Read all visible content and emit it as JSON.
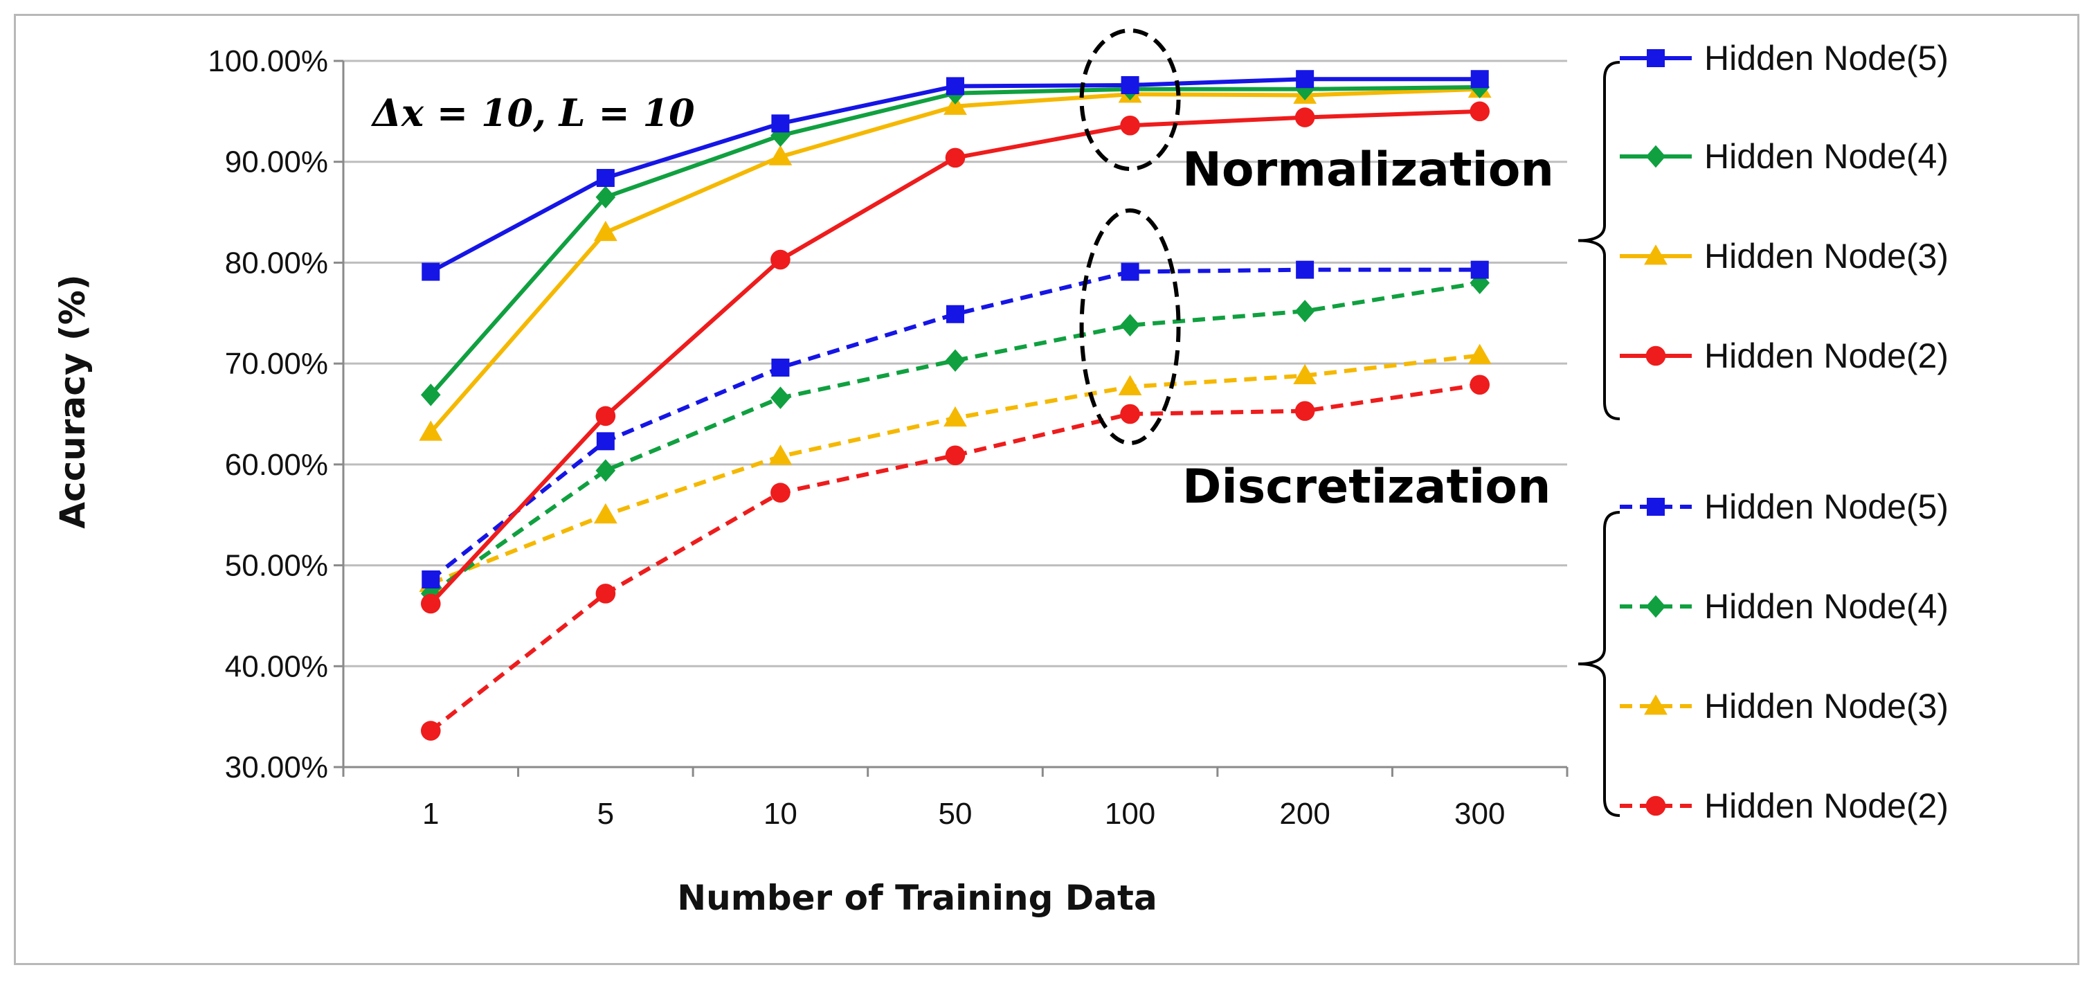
{
  "chart_data": {
    "type": "line",
    "title": "",
    "xlabel": "Number of Training Data",
    "ylabel": "Accuracy (%)",
    "categories": [
      "1",
      "5",
      "10",
      "50",
      "100",
      "200",
      "300"
    ],
    "ylim": [
      0.3,
      1.0
    ],
    "yticks": [
      "30.00%",
      "40.00%",
      "50.00%",
      "60.00%",
      "70.00%",
      "80.00%",
      "90.00%",
      "100.00%"
    ],
    "annotation": "Δx = 10, L = 10",
    "groups": [
      "Normalization",
      "Discretization"
    ],
    "series": [
      {
        "name": "Hidden Node(5)",
        "group": "Normalization",
        "color": "#1515e6",
        "marker": "square",
        "dashed": false,
        "values": [
          0.791,
          0.884,
          0.938,
          0.975,
          0.976,
          0.982,
          0.982
        ]
      },
      {
        "name": "Hidden Node(4)",
        "group": "Normalization",
        "color": "#10a040",
        "marker": "diamond",
        "dashed": false,
        "values": [
          0.669,
          0.865,
          0.926,
          0.968,
          0.972,
          0.972,
          0.974
        ]
      },
      {
        "name": "Hidden Node(3)",
        "group": "Normalization",
        "color": "#f5b800",
        "marker": "triangle",
        "dashed": false,
        "values": [
          0.632,
          0.83,
          0.905,
          0.955,
          0.967,
          0.966,
          0.972
        ]
      },
      {
        "name": "Hidden Node(2)",
        "group": "Normalization",
        "color": "#ee1c1c",
        "marker": "circle",
        "dashed": false,
        "values": [
          0.462,
          0.648,
          0.803,
          0.904,
          0.936,
          0.944,
          0.95
        ]
      },
      {
        "name": "Hidden Node(5)",
        "group": "Discretization",
        "color": "#1515e6",
        "marker": "square",
        "dashed": true,
        "values": [
          0.486,
          0.623,
          0.696,
          0.749,
          0.791,
          0.793,
          0.793
        ]
      },
      {
        "name": "Hidden Node(4)",
        "group": "Discretization",
        "color": "#10a040",
        "marker": "diamond",
        "dashed": true,
        "values": [
          0.472,
          0.594,
          0.666,
          0.703,
          0.738,
          0.752,
          0.78
        ]
      },
      {
        "name": "Hidden Node(3)",
        "group": "Discretization",
        "color": "#f5b800",
        "marker": "triangle",
        "dashed": true,
        "values": [
          0.482,
          0.55,
          0.608,
          0.646,
          0.677,
          0.688,
          0.708
        ]
      },
      {
        "name": "Hidden Node(2)",
        "group": "Discretization",
        "color": "#ee1c1c",
        "marker": "circle",
        "dashed": true,
        "values": [
          0.336,
          0.472,
          0.572,
          0.609,
          0.65,
          0.653,
          0.679
        ]
      }
    ]
  }
}
